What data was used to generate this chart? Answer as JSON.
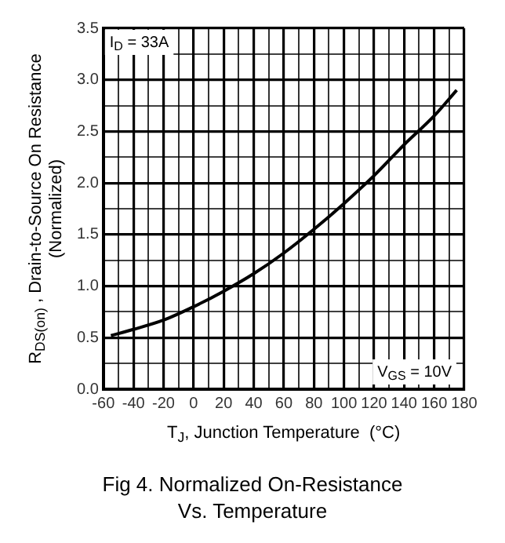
{
  "chart_data": {
    "type": "line",
    "title": "Fig 4.  Normalized On-Resistance Vs. Temperature",
    "xlabel": "T$_{J}$, Junction Temperature  (°C)",
    "ylabel": "R$_{DS(on)}$ , Drain-to-Source On Resistance (Normalized)",
    "annotations": [
      "I$_{D}$ = 33A",
      "V$_{GS}$ = 10V"
    ],
    "series": [
      {
        "color": "#000000",
        "x": [
          -55,
          -40,
          -20,
          0,
          20,
          40,
          60,
          80,
          100,
          120,
          140,
          160,
          175
        ],
        "values": [
          0.52,
          0.58,
          0.67,
          0.8,
          0.95,
          1.12,
          1.32,
          1.55,
          1.8,
          2.07,
          2.37,
          2.65,
          2.9
        ]
      }
    ],
    "xlim": [
      -60,
      180
    ],
    "xticks": [
      -60,
      {
        "value": -50,
        "label": null
      },
      -40,
      {
        "value": -30,
        "label": null
      },
      -20,
      {
        "value": -10,
        "label": null
      },
      0,
      {
        "value": 10,
        "label": null
      },
      20,
      {
        "value": 30,
        "label": null
      },
      40,
      {
        "value": 50,
        "label": null
      },
      60,
      {
        "value": 70,
        "label": null
      },
      80,
      {
        "value": 90,
        "label": null
      },
      100,
      {
        "value": 110,
        "label": null
      },
      120,
      {
        "value": 130,
        "label": null
      },
      140,
      {
        "value": 150,
        "label": null
      },
      160,
      {
        "value": 170,
        "label": null
      },
      180
    ],
    "ylim": [
      0,
      3.5
    ],
    "yticks": [
      {
        "value": 0,
        "label": "0.0"
      },
      {
        "value": 0.25,
        "label": null
      },
      {
        "value": 0.5,
        "label": "0.5"
      },
      {
        "value": 0.75,
        "label": null
      },
      {
        "value": 1,
        "label": "1.0"
      },
      {
        "value": 1.25,
        "label": null
      },
      {
        "value": 1.5,
        "label": "1.5"
      },
      {
        "value": 1.75,
        "label": null
      },
      {
        "value": 2,
        "label": "2.0"
      },
      {
        "value": 2.25,
        "label": null
      },
      {
        "value": 2.5,
        "label": "2.5"
      },
      {
        "value": 2.75,
        "label": null
      },
      {
        "value": 3,
        "label": "3.0"
      },
      {
        "value": 3.25,
        "label": null
      },
      {
        "value": 3.5,
        "label": "3.5"
      }
    ],
    "grid": true,
    "legend": false,
    "marker": "none",
    "line_style": "solid"
  }
}
